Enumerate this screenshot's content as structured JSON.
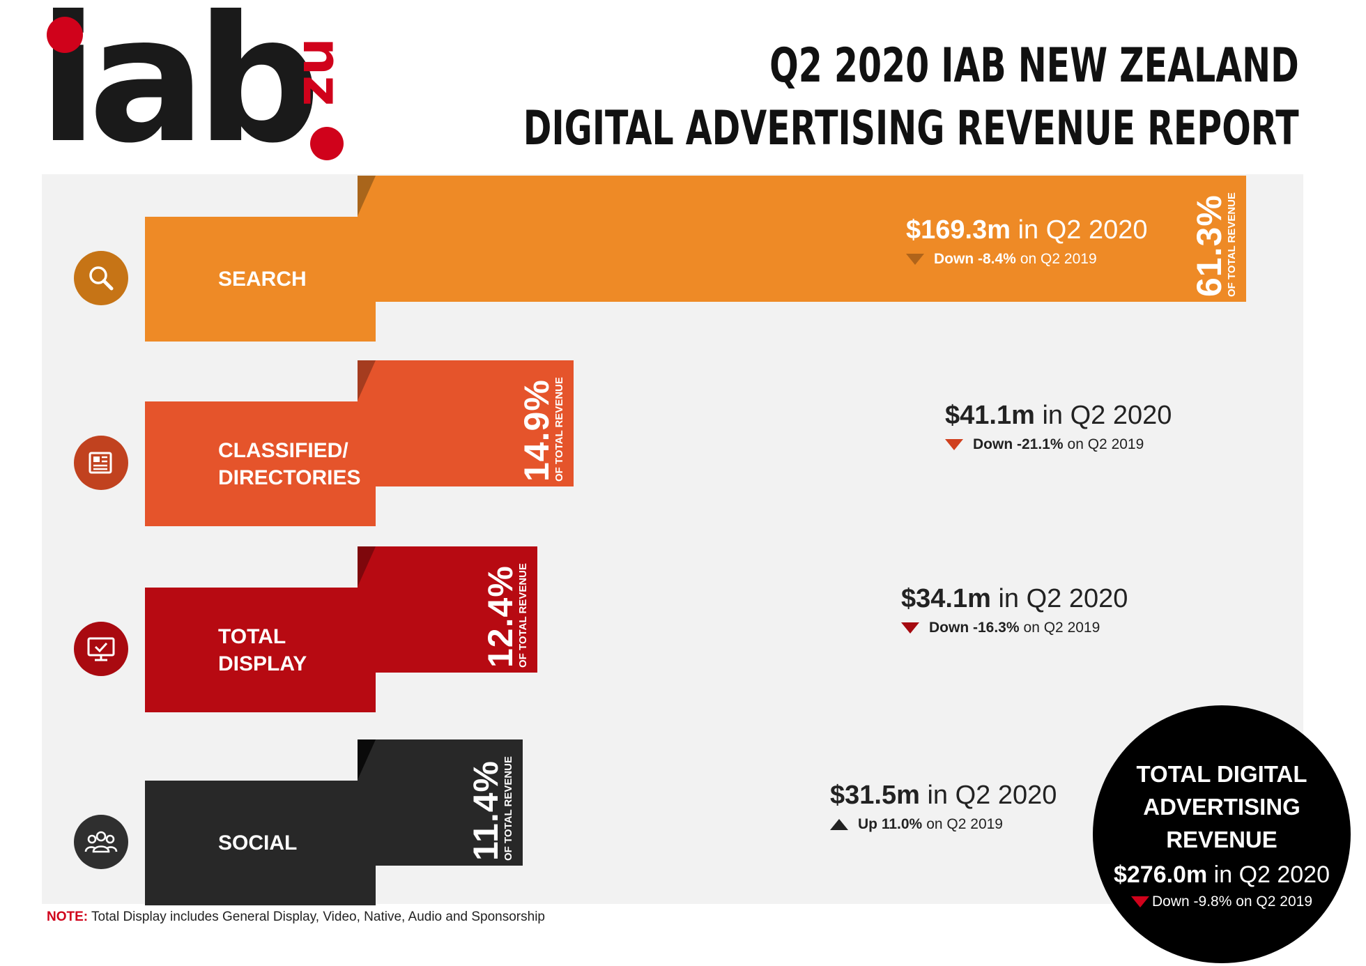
{
  "logo": {
    "main": "iab",
    "suffix": "nz",
    "main_color": "#1a1a1a",
    "accent": "#d0021b"
  },
  "title": {
    "line1": "Q2 2020 IAB NEW ZEALAND",
    "line2": "DIGITAL ADVERTISING REVENUE REPORT"
  },
  "share_caption": "OF TOTAL REVENUE",
  "chart_data": {
    "type": "bar",
    "orientation": "horizontal",
    "unit": "% of total revenue",
    "categories": [
      "SEARCH",
      "CLASSIFIED/ DIRECTORIES",
      "TOTAL DISPLAY",
      "SOCIAL"
    ],
    "values": [
      61.3,
      14.9,
      12.4,
      11.4
    ],
    "title": "Q2 2020 IAB NEW ZEALAND DIGITAL ADVERTISING REVENUE REPORT",
    "series": [
      {
        "key": "search",
        "label": "SEARCH",
        "icon": "search-icon",
        "color": "#ee8a26",
        "fold": "#a9651b",
        "icon_color": "#c67416",
        "share": 61.3,
        "share_text": "61.3%",
        "revenue_text": "$169.3m",
        "period_text": "in Q2 2020",
        "direction": "down",
        "change_label": "Down -8.4%",
        "change_suffix": "on Q2 2019",
        "text_color": "#ffffff",
        "arrow_color": "#b0641a"
      },
      {
        "key": "classified",
        "label": "CLASSIFIED/\nDIRECTORIES",
        "icon": "newspaper-icon",
        "color": "#e5542b",
        "fold": "#a53c1f",
        "icon_color": "#c1421f",
        "share": 14.9,
        "share_text": "14.9%",
        "revenue_text": "$41.1m",
        "period_text": "in Q2 2020",
        "direction": "down",
        "change_label": "Down -21.1%",
        "change_suffix": "on Q2 2019",
        "text_color": "#222222",
        "arrow_color": "#d0401e"
      },
      {
        "key": "display",
        "label": "TOTAL\nDISPLAY",
        "icon": "monitor-icon",
        "color": "#b70a12",
        "fold": "#7e070c",
        "icon_color": "#a90a10",
        "share": 12.4,
        "share_text": "12.4%",
        "revenue_text": "$34.1m",
        "period_text": "in Q2 2020",
        "direction": "down",
        "change_label": "Down -16.3%",
        "change_suffix": "on Q2 2019",
        "text_color": "#222222",
        "arrow_color": "#a50a10"
      },
      {
        "key": "social",
        "label": "SOCIAL",
        "icon": "people-icon",
        "color": "#282828",
        "fold": "#0a0a0a",
        "icon_color": "#2f2f2f",
        "share": 11.4,
        "share_text": "11.4%",
        "revenue_text": "$31.5m",
        "period_text": "in Q2 2020",
        "direction": "up",
        "change_label": "Up 11.0%",
        "change_suffix": "on Q2 2019",
        "text_color": "#222222",
        "arrow_color": "#222222"
      }
    ]
  },
  "total": {
    "heading": "TOTAL DIGITAL\nADVERTISING\nREVENUE",
    "revenue_text": "$276.0m",
    "period_text": "in Q2 2020",
    "direction": "down",
    "change_label": "Down -9.8%",
    "change_suffix": "on Q2 2019"
  },
  "note": {
    "label": "NOTE:",
    "text": "Total Display includes General Display, Video, Native, Audio and Sponsorship"
  }
}
